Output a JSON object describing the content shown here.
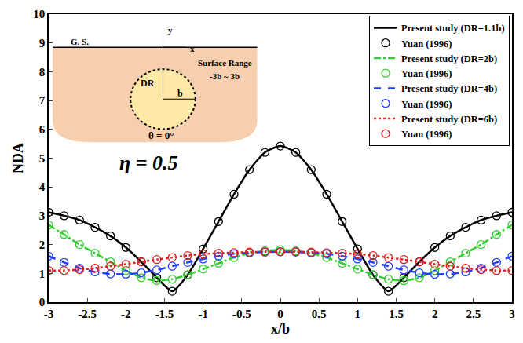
{
  "chart_data": {
    "type": "line",
    "x_label": "x/b",
    "y_label": "NDA",
    "xlim": [
      -3,
      3
    ],
    "ylim": [
      0,
      10
    ],
    "xticks": [
      -3,
      -2.5,
      -2,
      -1.5,
      -1,
      -0.5,
      0,
      0.5,
      1,
      1.5,
      2,
      2.5,
      3
    ],
    "yticks": [
      0,
      1,
      2,
      3,
      4,
      5,
      6,
      7,
      8,
      9,
      10
    ],
    "grid": false,
    "legend": "top-right",
    "annotations": [
      "η = 0.5",
      "G. S.",
      "x",
      "y",
      "DR",
      "b",
      "Surface Range",
      "-3b ~ 3b",
      "θ = 0°"
    ],
    "x": [
      -3,
      -2.8,
      -2.6,
      -2.4,
      -2.2,
      -2,
      -1.8,
      -1.6,
      -1.4,
      -1.2,
      -1,
      -0.8,
      -0.6,
      -0.4,
      -0.2,
      0,
      0.2,
      0.4,
      0.6,
      0.8,
      1,
      1.2,
      1.4,
      1.6,
      1.8,
      2,
      2.2,
      2.4,
      2.6,
      2.8,
      3
    ],
    "series": [
      {
        "name": "Present study (DR=1.1b)",
        "type": "line",
        "color": "#000000",
        "line_style": "solid",
        "values": [
          3.12,
          3.0,
          2.85,
          2.6,
          2.3,
          1.9,
          1.4,
          0.85,
          0.38,
          0.95,
          1.85,
          2.8,
          3.75,
          4.6,
          5.2,
          5.42,
          5.2,
          4.6,
          3.75,
          2.8,
          1.85,
          0.95,
          0.38,
          0.85,
          1.4,
          1.9,
          2.3,
          2.6,
          2.85,
          3.0,
          3.12
        ]
      },
      {
        "name": "Yuan (1996)",
        "type": "scatter",
        "color": "#000000",
        "marker": "circle-open",
        "values": [
          3.12,
          3.0,
          2.85,
          2.6,
          2.3,
          1.9,
          1.4,
          0.85,
          0.38,
          0.95,
          1.85,
          2.8,
          3.75,
          4.6,
          5.2,
          5.42,
          5.2,
          4.6,
          3.75,
          2.8,
          1.85,
          0.95,
          0.38,
          0.85,
          1.4,
          1.9,
          2.3,
          2.6,
          2.85,
          3.0,
          3.12
        ]
      },
      {
        "name": "Present study (DR=2b)",
        "type": "line",
        "color": "#33cc33",
        "line_style": "dashdot",
        "values": [
          2.68,
          2.35,
          2.0,
          1.7,
          1.4,
          1.1,
          0.85,
          0.75,
          0.8,
          0.95,
          1.15,
          1.35,
          1.55,
          1.7,
          1.78,
          1.82,
          1.78,
          1.7,
          1.55,
          1.35,
          1.15,
          0.95,
          0.8,
          0.75,
          0.85,
          1.1,
          1.4,
          1.7,
          2.0,
          2.35,
          2.68
        ]
      },
      {
        "name": "Yuan (1996)",
        "type": "scatter",
        "color": "#33cc33",
        "marker": "circle-open",
        "values": [
          2.68,
          2.35,
          2.0,
          1.7,
          1.4,
          1.1,
          0.85,
          0.75,
          0.8,
          0.95,
          1.15,
          1.35,
          1.55,
          1.7,
          1.78,
          1.82,
          1.78,
          1.7,
          1.55,
          1.35,
          1.15,
          0.95,
          0.8,
          0.75,
          0.85,
          1.1,
          1.4,
          1.7,
          2.0,
          2.35,
          2.68
        ]
      },
      {
        "name": "Present study (DR=4b)",
        "type": "line",
        "color": "#1f3fff",
        "line_style": "dash",
        "values": [
          1.6,
          1.38,
          1.18,
          1.05,
          0.98,
          0.97,
          1.02,
          1.12,
          1.25,
          1.38,
          1.5,
          1.6,
          1.68,
          1.72,
          1.74,
          1.75,
          1.74,
          1.72,
          1.68,
          1.6,
          1.5,
          1.38,
          1.25,
          1.12,
          1.02,
          0.97,
          0.98,
          1.05,
          1.18,
          1.38,
          1.6
        ]
      },
      {
        "name": "Yuan (1996)",
        "type": "scatter",
        "color": "#1f3fff",
        "marker": "circle-open",
        "values": [
          1.6,
          1.38,
          1.18,
          1.05,
          0.98,
          0.97,
          1.02,
          1.12,
          1.25,
          1.38,
          1.5,
          1.6,
          1.68,
          1.72,
          1.74,
          1.75,
          1.74,
          1.72,
          1.68,
          1.6,
          1.5,
          1.38,
          1.25,
          1.12,
          1.02,
          0.97,
          0.98,
          1.05,
          1.18,
          1.38,
          1.6
        ]
      },
      {
        "name": "Present study (DR=6b)",
        "type": "line",
        "color": "#e02020",
        "line_style": "dot",
        "values": [
          1.1,
          1.1,
          1.13,
          1.18,
          1.25,
          1.32,
          1.4,
          1.48,
          1.55,
          1.62,
          1.67,
          1.7,
          1.72,
          1.74,
          1.75,
          1.75,
          1.75,
          1.74,
          1.72,
          1.7,
          1.67,
          1.62,
          1.55,
          1.48,
          1.4,
          1.32,
          1.25,
          1.18,
          1.13,
          1.1,
          1.1
        ]
      },
      {
        "name": "Yuan (1996)",
        "type": "scatter",
        "color": "#e02020",
        "marker": "circle-open",
        "values": [
          1.1,
          1.1,
          1.13,
          1.18,
          1.25,
          1.32,
          1.4,
          1.48,
          1.55,
          1.62,
          1.67,
          1.7,
          1.72,
          1.74,
          1.75,
          1.75,
          1.75,
          1.74,
          1.72,
          1.7,
          1.67,
          1.62,
          1.55,
          1.48,
          1.4,
          1.32,
          1.25,
          1.18,
          1.13,
          1.1,
          1.1
        ]
      }
    ]
  }
}
